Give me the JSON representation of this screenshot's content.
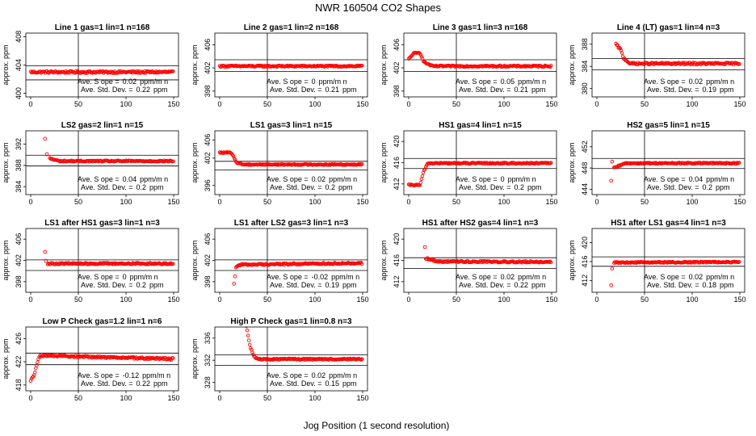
{
  "figure": {
    "title": "NWR  160504  CO2 Shapes",
    "xlabel": "Jog Position (1 second resolution)",
    "marker_color": "#ff0000"
  },
  "chart_data": [
    {
      "type": "scatter",
      "title": "Line 1 gas=1 lin=1 n=168",
      "ylabel": "approx. ppm",
      "xlim": [
        0,
        150
      ],
      "ylim": [
        399.5,
        408.5
      ],
      "xticks": [
        0,
        50,
        100,
        150
      ],
      "yticks": [
        400,
        404,
        408
      ],
      "hlines": [
        403.9,
        401.9
      ],
      "vline": 50,
      "series": [
        {
          "segments": [
            [
              0,
              403.0
            ],
            [
              150,
              403.0
            ]
          ],
          "noise": 0.15
        }
      ],
      "stats": {
        "slope_label": "Ave. S ope =",
        "slope_value": "0.02",
        "slope_unit": "ppm/m n",
        "std_label": "Ave. Std. Dev. =",
        "std_value": "0.22",
        "std_unit": "ppm"
      }
    },
    {
      "type": "scatter",
      "title": "Line 2 gas=1 lin=2 n=168",
      "ylabel": "approx. ppm",
      "xlim": [
        0,
        150
      ],
      "ylim": [
        397,
        408
      ],
      "xticks": [
        0,
        50,
        100,
        150
      ],
      "yticks": [
        398,
        402,
        406
      ],
      "hlines": [
        403.4,
        401.4
      ],
      "vline": 50,
      "series": [
        {
          "segments": [
            [
              0,
              402.3
            ],
            [
              150,
              402.3
            ]
          ],
          "noise": 0.12
        }
      ],
      "stats": {
        "slope_label": "Ave. S ope =",
        "slope_value": "0",
        "slope_unit": "ppm/m n",
        "std_label": "Ave. Std. Dev. =",
        "std_value": "0.21",
        "std_unit": "ppm"
      }
    },
    {
      "type": "scatter",
      "title": "Line 3 gas=1 lin=3 n=168",
      "ylabel": "approx. ppm",
      "xlim": [
        0,
        150
      ],
      "ylim": [
        397,
        408
      ],
      "xticks": [
        0,
        50,
        100,
        150
      ],
      "yticks": [
        398,
        402,
        406
      ],
      "hlines": [
        403.4,
        401.4
      ],
      "vline": 50,
      "series": [
        {
          "segments": [
            [
              0,
              403.5
            ],
            [
              5,
              404.5
            ],
            [
              12,
              404.6
            ],
            [
              16,
              403.0
            ],
            [
              25,
              402.3
            ],
            [
              150,
              402.3
            ]
          ],
          "noise": 0.12
        }
      ],
      "stats": {
        "slope_label": "Ave. S ope =",
        "slope_value": "0.05",
        "slope_unit": "ppm/m n",
        "std_label": "Ave. Std. Dev. =",
        "std_value": "0.21",
        "std_unit": "ppm"
      }
    },
    {
      "type": "scatter",
      "title": "Line 4 (LT) gas=1 lin=4 n=3",
      "ylabel": "approx. ppm",
      "xlim": [
        0,
        150
      ],
      "ylim": [
        378.5,
        390
      ],
      "xticks": [
        0,
        50,
        100,
        150
      ],
      "yticks": [
        380,
        384,
        388
      ],
      "hlines": [
        385.4,
        383.4
      ],
      "vline": 50,
      "series": [
        {
          "segments": [
            [
              20,
              388.0
            ],
            [
              25,
              387.0
            ],
            [
              28,
              385.5
            ],
            [
              35,
              384.5
            ],
            [
              150,
              384.5
            ]
          ],
          "noise": 0.18
        }
      ],
      "stats": {
        "slope_label": "Ave. S ope =",
        "slope_value": "0.02",
        "slope_unit": "ppm/m n",
        "std_label": "Ave. Std. Dev. =",
        "std_value": "0.19",
        "std_unit": "ppm"
      }
    },
    {
      "type": "scatter",
      "title": "LS2 gas=2 lin=1 n=15",
      "ylabel": "approx. ppm",
      "xlim": [
        0,
        150
      ],
      "ylim": [
        382.5,
        394.5
      ],
      "xticks": [
        0,
        50,
        100,
        150
      ],
      "yticks": [
        384,
        388,
        392
      ],
      "hlines": [
        389.9,
        387.9
      ],
      "vline": 50,
      "series": [
        {
          "segments": [
            [
              20,
              389.3
            ],
            [
              30,
              388.8
            ],
            [
              150,
              388.8
            ]
          ],
          "noise": 0.12
        }
      ],
      "outliers": [
        [
          15,
          393.0
        ],
        [
          17,
          390.1
        ]
      ],
      "stats": {
        "slope_label": "Ave. S ope =",
        "slope_value": "0.04",
        "slope_unit": "ppm/m n",
        "std_label": "Ave. Std. Dev. =",
        "std_value": "0.2",
        "std_unit": "ppm"
      }
    },
    {
      "type": "scatter",
      "title": "LS1 gas=3 lin=1 n=15",
      "ylabel": "approx. ppm",
      "xlim": [
        0,
        150
      ],
      "ylim": [
        394,
        408
      ],
      "xticks": [
        0,
        50,
        100,
        150
      ],
      "yticks": [
        396,
        402,
        406
      ],
      "hlines": [
        401.3,
        399.4
      ],
      "vline": 50,
      "series": [
        {
          "segments": [
            [
              0,
              403.2
            ],
            [
              12,
              403.2
            ],
            [
              18,
              401.0
            ],
            [
              25,
              400.6
            ],
            [
              150,
              400.6
            ]
          ],
          "noise": 0.12
        }
      ],
      "stats": {
        "slope_label": "Ave. S ope =",
        "slope_value": "0.02",
        "slope_unit": "ppm/m n",
        "std_label": "Ave. Std. Dev. =",
        "std_value": "0.2",
        "std_unit": "ppm"
      }
    },
    {
      "type": "scatter",
      "title": "HS1 gas=4 lin=1 n=15",
      "ylabel": "approx. ppm",
      "xlim": [
        0,
        150
      ],
      "ylim": [
        410,
        422
      ],
      "xticks": [
        0,
        50,
        100,
        150
      ],
      "yticks": [
        412,
        416,
        420
      ],
      "hlines": [
        416.8,
        414.9
      ],
      "vline": 50,
      "series": [
        {
          "segments": [
            [
              0,
              411.8
            ],
            [
              12,
              411.8
            ],
            [
              16,
              414.5
            ],
            [
              20,
              415.9
            ],
            [
              150,
              415.9
            ]
          ],
          "noise": 0.12
        }
      ],
      "stats": {
        "slope_label": "Ave. S ope =",
        "slope_value": "0",
        "slope_unit": "ppm/m n",
        "std_label": "Ave. Std. Dev. =",
        "std_value": "0.2",
        "std_unit": "ppm"
      }
    },
    {
      "type": "scatter",
      "title": "HS2 gas=5 lin=1 n=15",
      "ylabel": "approx. ppm",
      "xlim": [
        0,
        150
      ],
      "ylim": [
        443,
        455
      ],
      "xticks": [
        0,
        50,
        100,
        150
      ],
      "yticks": [
        444,
        448,
        452
      ],
      "hlines": [
        449.8,
        447.9
      ],
      "vline": 50,
      "series": [
        {
          "segments": [
            [
              18,
              448.0
            ],
            [
              30,
              448.9
            ],
            [
              150,
              448.9
            ]
          ],
          "noise": 0.12
        }
      ],
      "outliers": [
        [
          15,
          445.6
        ],
        [
          16,
          449.2
        ]
      ],
      "stats": {
        "slope_label": "Ave. S ope =",
        "slope_value": "0.04",
        "slope_unit": "ppm/m n",
        "std_label": "Ave. Std. Dev. =",
        "std_value": "0.2",
        "std_unit": "ppm"
      }
    },
    {
      "type": "scatter",
      "title": "LS1 after HS1 gas=3 lin=1 n=3",
      "ylabel": "approx. ppm",
      "xlim": [
        0,
        150
      ],
      "ylim": [
        396,
        408
      ],
      "xticks": [
        0,
        50,
        100,
        150
      ],
      "yticks": [
        398,
        402,
        406
      ],
      "hlines": [
        402.1,
        400.1
      ],
      "vline": 50,
      "series": [
        {
          "segments": [
            [
              18,
              401.4
            ],
            [
              150,
              401.4
            ]
          ],
          "noise": 0.15
        }
      ],
      "outliers": [
        [
          15,
          403.6
        ],
        [
          16,
          401.9
        ]
      ],
      "stats": {
        "slope_label": "Ave. S ope =",
        "slope_value": "0",
        "slope_unit": "ppm/m n",
        "std_label": "Ave. Std. Dev. =",
        "std_value": "0.2",
        "std_unit": "ppm"
      }
    },
    {
      "type": "scatter",
      "title": "LS1 after LS2 gas=3 lin=1 n=3",
      "ylabel": "approx. ppm",
      "xlim": [
        0,
        150
      ],
      "ylim": [
        396,
        408
      ],
      "xticks": [
        0,
        50,
        100,
        150
      ],
      "yticks": [
        398,
        402,
        406
      ],
      "hlines": [
        402.1,
        400.1
      ],
      "vline": 50,
      "series": [
        {
          "segments": [
            [
              17,
              400.8
            ],
            [
              22,
              401.2
            ],
            [
              150,
              401.5
            ]
          ],
          "noise": 0.15
        }
      ],
      "outliers": [
        [
          15,
          397.6
        ],
        [
          16,
          399.0
        ]
      ],
      "stats": {
        "slope_label": "Ave. S ope =",
        "slope_value": "-0.02",
        "slope_unit": "ppm/m n",
        "std_label": "Ave. Std. Dev. =",
        "std_value": "0.19",
        "std_unit": "ppm"
      }
    },
    {
      "type": "scatter",
      "title": "HS1 after HS2 gas=4 lin=1 n=3",
      "ylabel": "approx. ppm",
      "xlim": [
        0,
        150
      ],
      "ylim": [
        410,
        422
      ],
      "xticks": [
        0,
        50,
        100,
        150
      ],
      "yticks": [
        412,
        416,
        420
      ],
      "hlines": [
        416.5,
        414.5
      ],
      "vline": 50,
      "series": [
        {
          "segments": [
            [
              18,
              416.4
            ],
            [
              30,
              415.8
            ],
            [
              150,
              415.7
            ]
          ],
          "noise": 0.15
        }
      ],
      "outliers": [
        [
          17,
          418.5
        ]
      ],
      "stats": {
        "slope_label": "Ave. S ope =",
        "slope_value": "0.02",
        "slope_unit": "ppm/m n",
        "std_label": "Ave. Std. Dev. =",
        "std_value": "0.22",
        "std_unit": "ppm"
      }
    },
    {
      "type": "scatter",
      "title": "HS1 after LS1 gas=4 lin=1 n=3",
      "ylabel": "approx. ppm",
      "xlim": [
        0,
        150
      ],
      "ylim": [
        409.5,
        423
      ],
      "xticks": [
        0,
        50,
        100,
        150
      ],
      "yticks": [
        412,
        416,
        420
      ],
      "hlines": [
        417.0,
        415.0
      ],
      "vline": 50,
      "series": [
        {
          "segments": [
            [
              18,
              415.8
            ],
            [
              150,
              415.9
            ]
          ],
          "noise": 0.12
        }
      ],
      "outliers": [
        [
          15,
          411.0
        ],
        [
          16,
          414.5
        ]
      ],
      "stats": {
        "slope_label": "Ave. S ope =",
        "slope_value": "0.02",
        "slope_unit": "ppm/m n",
        "std_label": "Ave. Std. Dev. =",
        "std_value": "0.18",
        "std_unit": "ppm"
      }
    },
    {
      "type": "scatter",
      "title": "Low P Check gas=1.2 lin=1 n=6",
      "ylabel": "approx. ppm",
      "xlim": [
        0,
        150
      ],
      "ylim": [
        417,
        428
      ],
      "xticks": [
        0,
        50,
        100,
        150
      ],
      "yticks": [
        418,
        422,
        426
      ],
      "hlines": [
        423.5,
        421.5
      ],
      "vline": 50,
      "series": [
        {
          "segments": [
            [
              0,
              418.8
            ],
            [
              4,
              419.8
            ],
            [
              8,
              422.5
            ],
            [
              10,
              423.0
            ],
            [
              20,
              423.1
            ],
            [
              50,
              422.9
            ],
            [
              150,
              422.5
            ]
          ],
          "noise": 0.15
        }
      ],
      "stats": {
        "slope_label": "Ave. S ope =",
        "slope_value": "-0.12",
        "slope_unit": "ppm/m n",
        "std_label": "Ave. Std. Dev. =",
        "std_value": "0.22",
        "std_unit": "ppm"
      }
    },
    {
      "type": "scatter",
      "title": "High P Check gas=1 lin=0.8 n=3",
      "ylabel": "approx. ppm",
      "xlim": [
        0,
        150
      ],
      "ylim": [
        326.5,
        338
      ],
      "xticks": [
        0,
        50,
        100,
        150
      ],
      "yticks": [
        328,
        332,
        336
      ],
      "hlines": [
        333.0,
        331.1
      ],
      "vline": 50,
      "series": [
        {
          "segments": [
            [
              28,
              338.2
            ],
            [
              32,
              334.5
            ],
            [
              36,
              332.6
            ],
            [
              40,
              332.2
            ],
            [
              150,
              332.2
            ]
          ],
          "noise": 0.12
        }
      ],
      "stats": {
        "slope_label": "Ave. S ope =",
        "slope_value": "0.02",
        "slope_unit": "ppm/m n",
        "std_label": "Ave. Std. Dev. =",
        "std_value": "0.15",
        "std_unit": "ppm"
      }
    }
  ]
}
